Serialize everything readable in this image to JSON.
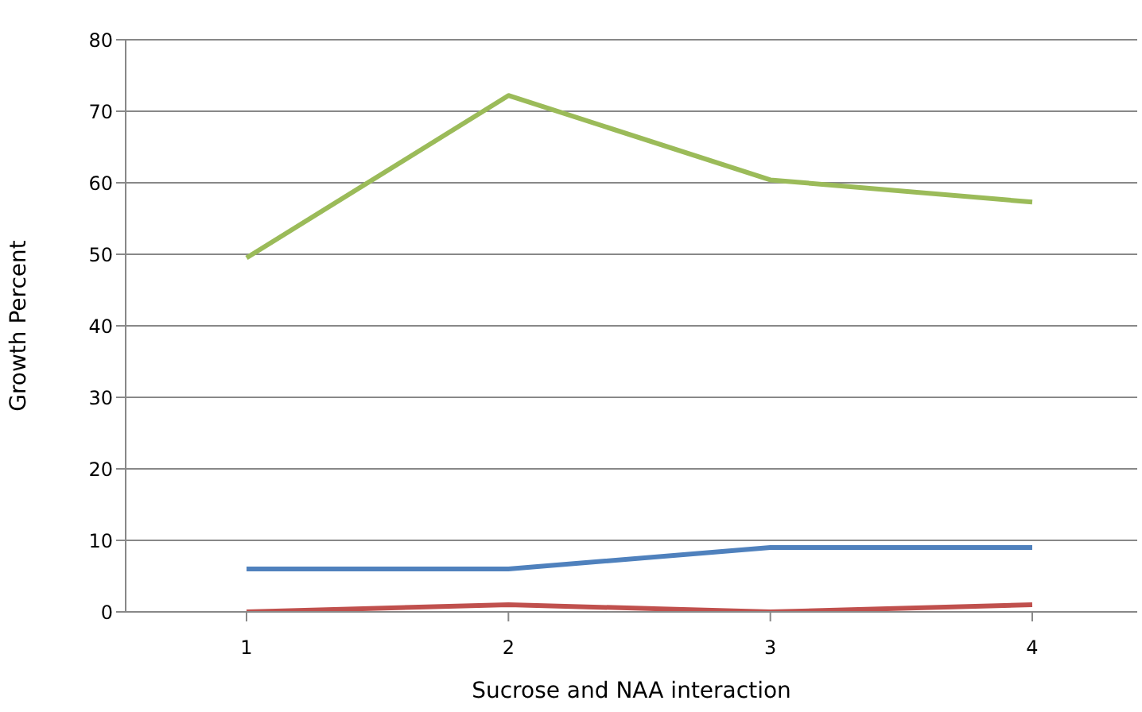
{
  "chart_data": {
    "type": "line",
    "xlabel": "Sucrose and NAA interaction",
    "ylabel": "Growth Percent",
    "categories": [
      "1",
      "2",
      "3",
      "4"
    ],
    "series": [
      {
        "color": "#4f81bd",
        "values": [
          6,
          6,
          9,
          9
        ]
      },
      {
        "color": "#c0504d",
        "values": [
          0,
          1,
          0,
          1
        ]
      },
      {
        "color": "#9bbb59",
        "values": [
          49.5,
          72.2,
          60.4,
          57.3
        ]
      }
    ],
    "ylim": [
      0,
      80
    ],
    "yticks": [
      0,
      10,
      20,
      30,
      40,
      50,
      60,
      70,
      80
    ],
    "grid": "y",
    "legend": false,
    "marker": "none",
    "line_style": "solid"
  }
}
